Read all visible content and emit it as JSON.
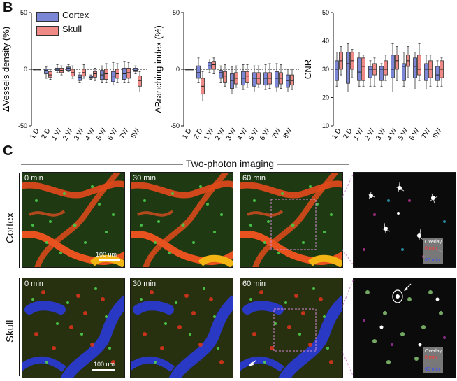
{
  "panel_b_label": "B",
  "panel_c_label": "C",
  "legend": [
    {
      "name": "Cortex",
      "color": "#7b86d6"
    },
    {
      "name": "Skull",
      "color": "#f08a86"
    }
  ],
  "chart_data": [
    {
      "type": "box",
      "ylabel": "ΔVessels density (%)",
      "ylim": [
        -50,
        50
      ],
      "yticks": [
        "50",
        "0",
        "-50"
      ],
      "categories": [
        "1 D",
        "2 D",
        "1 W",
        "2 W",
        "3 W",
        "4 W",
        "5 W",
        "6 W",
        "7W",
        "8W"
      ],
      "series": [
        {
          "name": "Cortex",
          "boxes": [
            [
              0,
              0,
              0,
              0,
              0
            ],
            [
              -8,
              -4,
              -1,
              0,
              2
            ],
            [
              -3,
              -1,
              0,
              1,
              4
            ],
            [
              -2,
              -1,
              1,
              2,
              4
            ],
            [
              -12,
              -10,
              -7,
              -5,
              -3
            ],
            [
              -9,
              -8,
              -7,
              -6,
              -5
            ],
            [
              -12,
              -9,
              -5,
              -1,
              3
            ],
            [
              -14,
              -11,
              -6,
              -2,
              6
            ],
            [
              -12,
              -9,
              -4,
              1,
              7
            ],
            [
              -4,
              -2,
              -1,
              1,
              3
            ]
          ]
        },
        {
          "name": "Skull",
          "boxes": [
            [
              0,
              0,
              0,
              0,
              0
            ],
            [
              -9,
              -7,
              -5,
              -2,
              0
            ],
            [
              -5,
              -3,
              -1,
              1,
              3
            ],
            [
              -8,
              -6,
              -3,
              0,
              3
            ],
            [
              -8,
              -6,
              -3,
              0,
              4
            ],
            [
              -10,
              -7,
              -4,
              -2,
              1
            ],
            [
              -12,
              -9,
              -4,
              0,
              5
            ],
            [
              -12,
              -8,
              -4,
              0,
              5
            ],
            [
              -12,
              -8,
              -3,
              1,
              6
            ],
            [
              -20,
              -15,
              -10,
              -6,
              -2
            ]
          ]
        }
      ]
    },
    {
      "type": "box",
      "ylabel": "ΔBranching index (%)",
      "ylim": [
        -50,
        50
      ],
      "yticks": [
        "50",
        "0",
        "-50"
      ],
      "categories": [
        "1 D",
        "2 D",
        "1 W",
        "2 W",
        "3 W",
        "4 W",
        "5 W",
        "6 W",
        "7W",
        "8W"
      ],
      "series": [
        {
          "name": "Cortex",
          "boxes": [
            [
              0,
              0,
              0,
              0,
              0
            ],
            [
              -12,
              -8,
              -3,
              3,
              10
            ],
            [
              -3,
              0,
              3,
              6,
              9
            ],
            [
              -12,
              -8,
              -3,
              -1,
              3
            ],
            [
              -22,
              -17,
              -10,
              -4,
              2
            ],
            [
              -18,
              -14,
              -8,
              -2,
              4
            ],
            [
              -20,
              -15,
              -8,
              -3,
              3
            ],
            [
              -18,
              -14,
              -8,
              -3,
              4
            ],
            [
              -20,
              -16,
              -8,
              -2,
              5
            ],
            [
              -20,
              -16,
              -10,
              -5,
              0
            ]
          ]
        },
        {
          "name": "Skull",
          "boxes": [
            [
              0,
              0,
              0,
              0,
              0
            ],
            [
              -28,
              -22,
              -15,
              -8,
              -2
            ],
            [
              -4,
              0,
              4,
              7,
              10
            ],
            [
              -15,
              -12,
              -6,
              -2,
              4
            ],
            [
              -16,
              -13,
              -8,
              -3,
              3
            ],
            [
              -16,
              -12,
              -6,
              -2,
              4
            ],
            [
              -16,
              -13,
              -8,
              -3,
              3
            ],
            [
              -17,
              -13,
              -8,
              -3,
              5
            ],
            [
              -17,
              -13,
              -8,
              -3,
              4
            ],
            [
              -18,
              -14,
              -10,
              -5,
              0
            ]
          ]
        }
      ]
    },
    {
      "type": "box",
      "ylabel": "CNR",
      "ylim": [
        10,
        50
      ],
      "yticks": [
        "50",
        "40",
        "30",
        "20",
        "10"
      ],
      "categories": [
        "1 D",
        "2 D",
        "1 W",
        "2 W",
        "3 W",
        "4 W",
        "5 W",
        "6 W",
        "7W",
        "8W"
      ],
      "series": [
        {
          "name": "Cortex",
          "boxes": [
            [
              24,
              26,
              30,
              33,
              36
            ],
            [
              22,
              25,
              32,
              36,
              39
            ],
            [
              24,
              26,
              29,
              34,
              36
            ],
            [
              24,
              27,
              30,
              31,
              33
            ],
            [
              24,
              26,
              30,
              31,
              32
            ],
            [
              22,
              27,
              30,
              35,
              39
            ],
            [
              24,
              26,
              31,
              32,
              36
            ],
            [
              23,
              27,
              31,
              34,
              36
            ],
            [
              23,
              26,
              30,
              32,
              35
            ],
            [
              24,
              26,
              28,
              31,
              33
            ]
          ]
        },
        {
          "name": "Skull",
          "boxes": [
            [
              28,
              30,
              33,
              36,
              38
            ],
            [
              27,
              30,
              33,
              36,
              37
            ],
            [
              24,
              26,
              31,
              34,
              35
            ],
            [
              24,
              28,
              30,
              32,
              34
            ],
            [
              26,
              28,
              30,
              33,
              35
            ],
            [
              26,
              30,
              33,
              35,
              38
            ],
            [
              27,
              31,
              33,
              35,
              38
            ],
            [
              26,
              28,
              30,
              35,
              39
            ],
            [
              24,
              27,
              30,
              33,
              35
            ],
            [
              24,
              27,
              30,
              33,
              34
            ]
          ]
        }
      ]
    }
  ],
  "panel_c": {
    "title": "Two-photon imaging",
    "rows": [
      {
        "label": "Cortex",
        "times": [
          "0 min",
          "30 min",
          "60 min"
        ],
        "scale": "100 um"
      },
      {
        "label": "Skull",
        "times": [
          "0 min",
          "30 min",
          "60 min"
        ],
        "scale": "100 um"
      }
    ],
    "overlay": {
      "title": "Overlay",
      "t0": "0 min",
      "t60": "60 min"
    }
  }
}
